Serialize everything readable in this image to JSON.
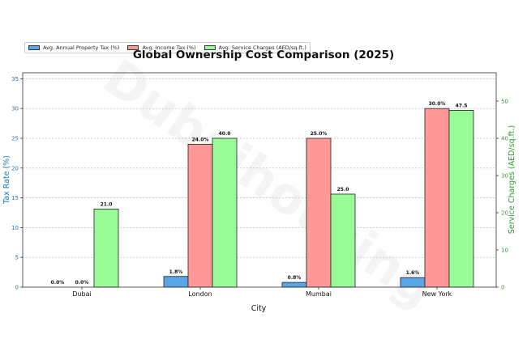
{
  "chart_data": {
    "type": "bar",
    "title": "Global Ownership Cost Comparison (2025)",
    "xlabel": "City",
    "ylabel": "Tax Rate (%)",
    "ylabel_right": "Service Charges (AED/sq.ft.)",
    "categories": [
      "Dubai",
      "London",
      "Mumbai",
      "New York"
    ],
    "ylim": [
      0,
      36
    ],
    "ylim_right": [
      0,
      57.6
    ],
    "yticks": [
      0,
      5,
      10,
      15,
      20,
      25,
      30,
      35
    ],
    "yticks_right": [
      0,
      10,
      20,
      30,
      40,
      50
    ],
    "grid": true,
    "legend_position": "top-left",
    "series": [
      {
        "name": "Avg. Annual Property Tax (%)",
        "axis": "left",
        "color": "#5aa5e6",
        "values": [
          0.0,
          1.8,
          0.8,
          1.6
        ],
        "labels": [
          "0.0%",
          "1.8%",
          "0.8%",
          "1.6%"
        ]
      },
      {
        "name": "Avg. Income Tax (%)",
        "axis": "left",
        "color": "#ff9896",
        "values": [
          0.0,
          24.0,
          25.0,
          30.0
        ],
        "labels": [
          "0.0%",
          "24.0%",
          "25.0%",
          "30.0%"
        ]
      },
      {
        "name": "Avg. Service Charges (AED/sq.ft.)",
        "axis": "right",
        "color": "#98fb98",
        "values": [
          21.0,
          40.0,
          25.0,
          47.5
        ],
        "labels": [
          "21.0",
          "40.0",
          "25.0",
          "47.5"
        ]
      }
    ],
    "watermark": "Dubaihousing",
    "colors": {
      "left_axis": "#1f77b4",
      "right_axis": "#2ca02c"
    }
  }
}
